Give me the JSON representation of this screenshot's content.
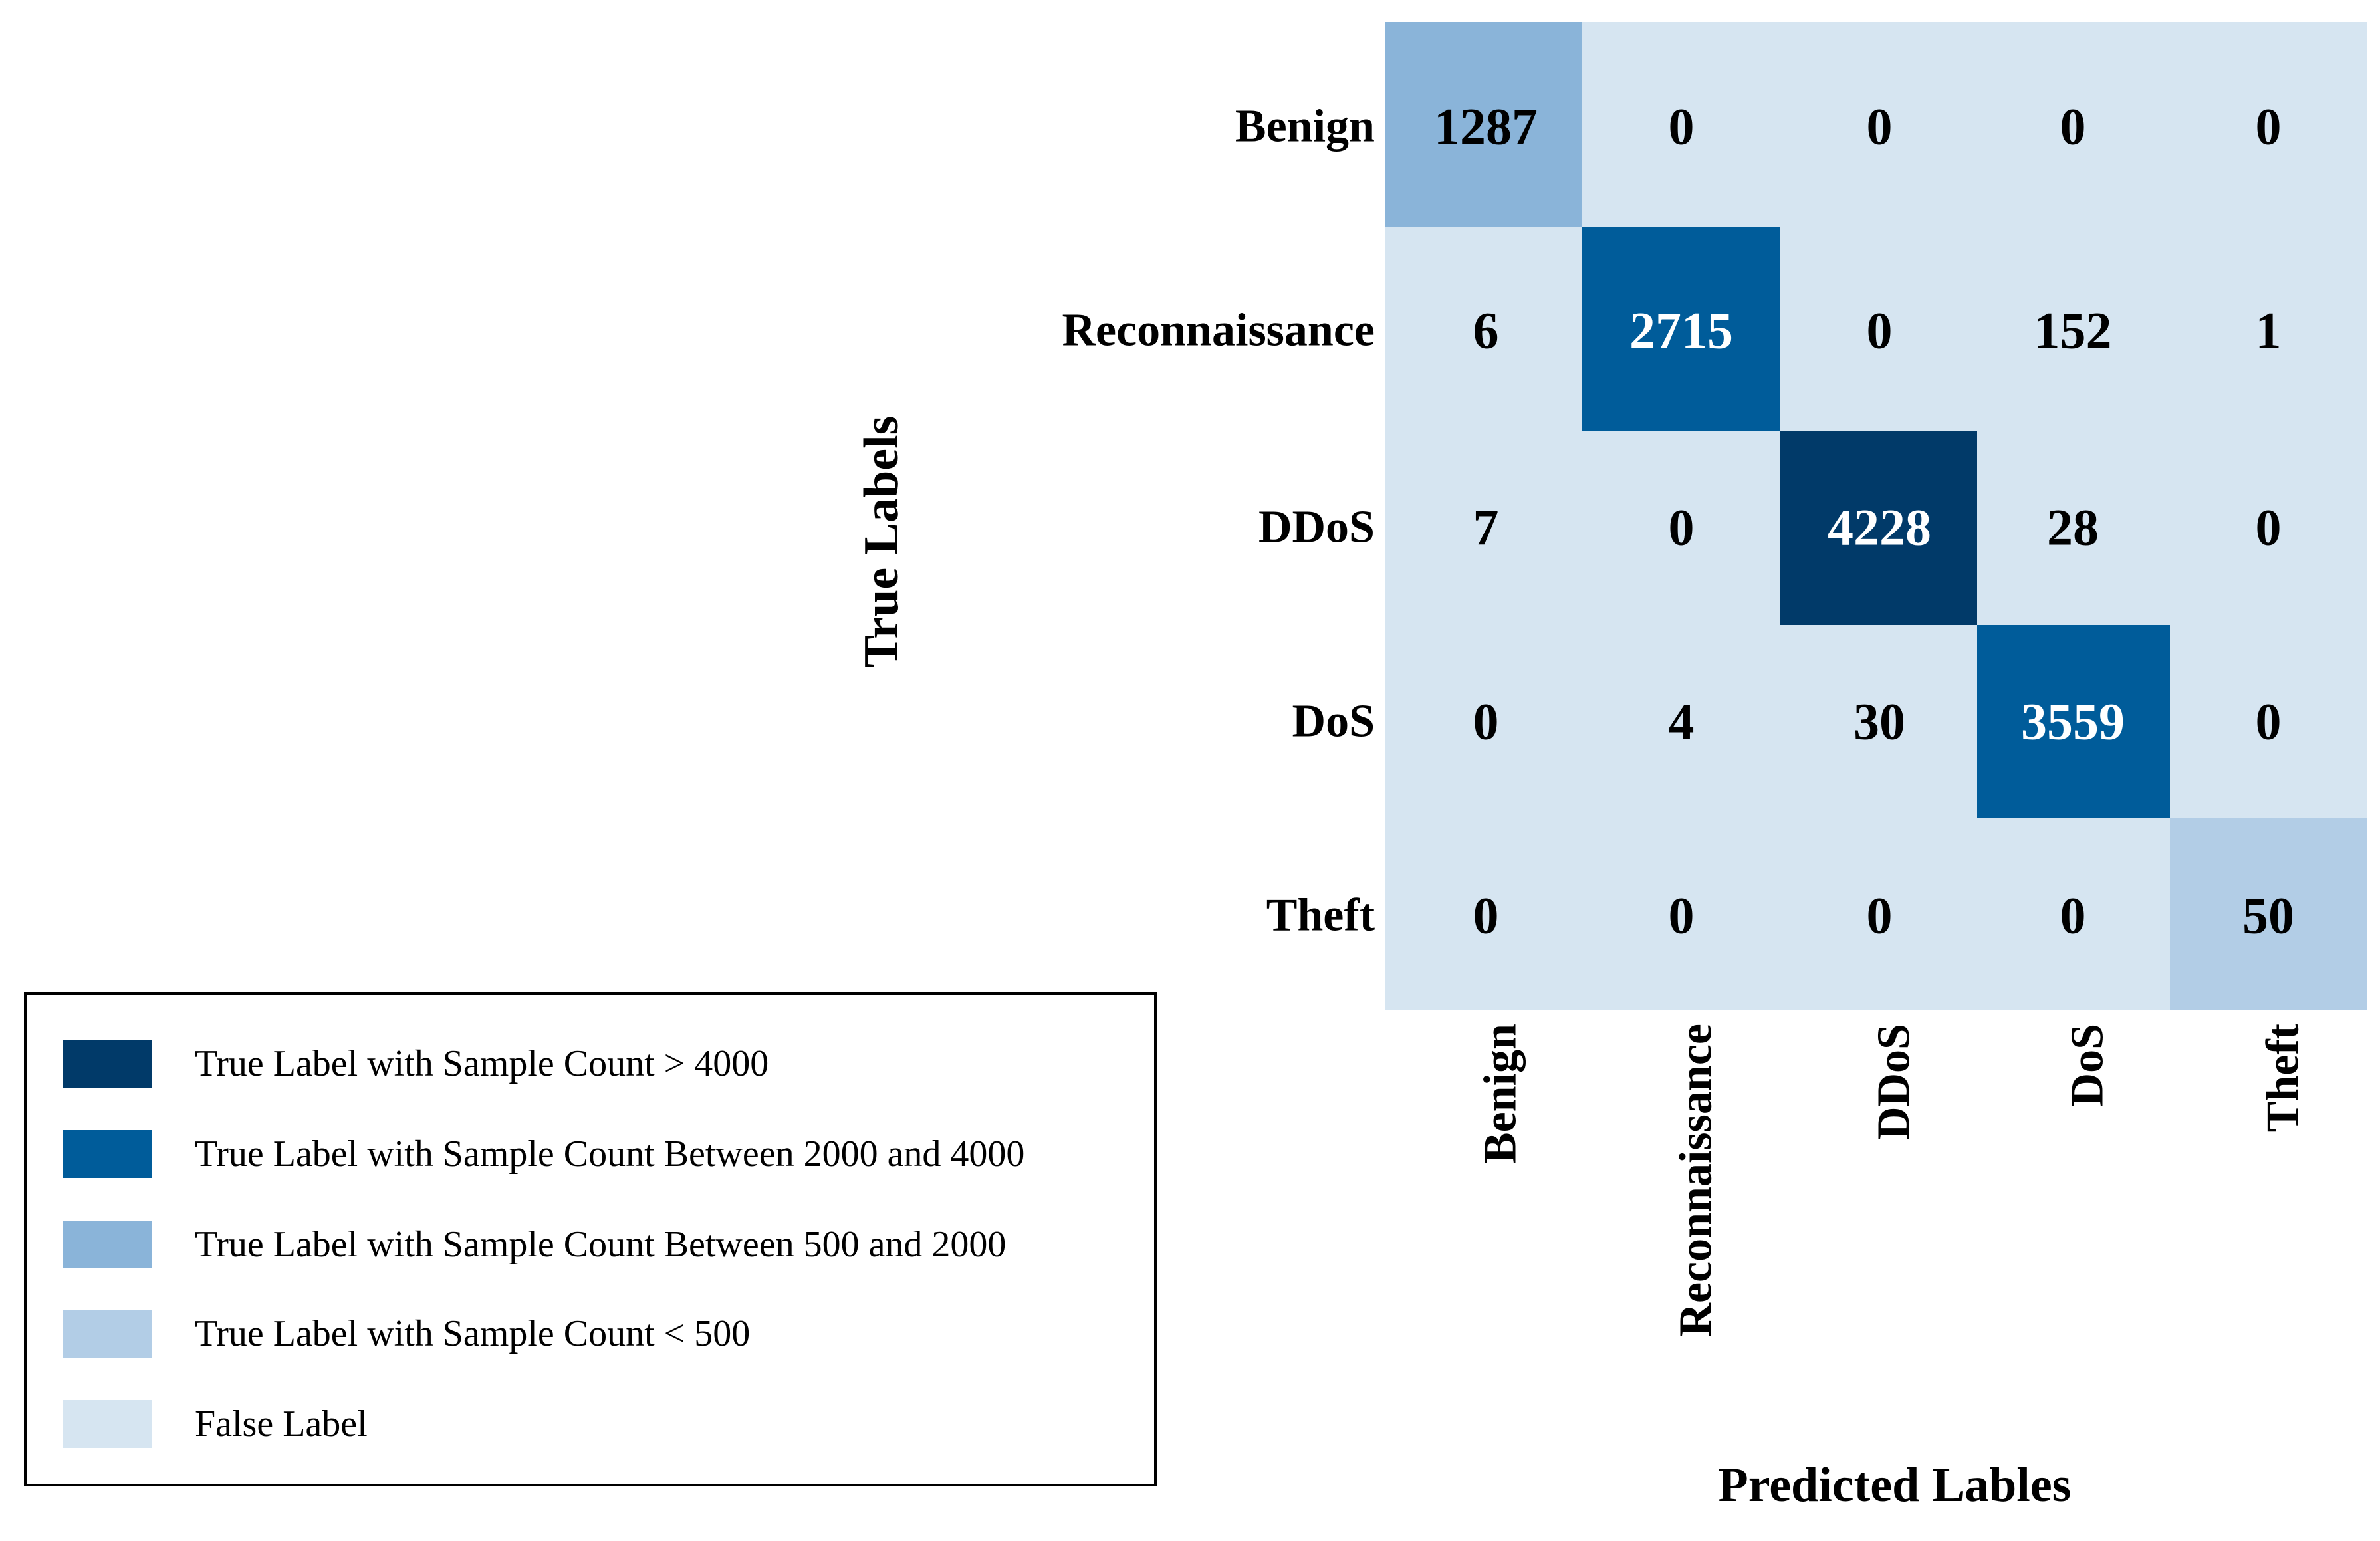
{
  "chart_data": {
    "type": "heatmap",
    "title": "",
    "xlabel": "Predicted Lables",
    "ylabel": "True Labels",
    "x_categories": [
      "Benign",
      "Reconnaissance",
      "DDoS",
      "DoS",
      "Theft"
    ],
    "y_categories": [
      "Benign",
      "Reconnaissance",
      "DDoS",
      "DoS",
      "Theft"
    ],
    "matrix": [
      [
        1287,
        0,
        0,
        0,
        0
      ],
      [
        6,
        2715,
        0,
        152,
        1
      ],
      [
        7,
        0,
        4228,
        28,
        0
      ],
      [
        0,
        4,
        30,
        3559,
        0
      ],
      [
        0,
        0,
        0,
        0,
        50
      ]
    ],
    "legend_position": "bottom-left",
    "legend": [
      {
        "label": "True Label with Sample Count > 4000",
        "color": "#013a69"
      },
      {
        "label": "True Label with Sample Count Between 2000 and 4000",
        "color": "#005c9a"
      },
      {
        "label": "True Label with Sample Count Between 500 and 2000",
        "color": "#8ab4d9"
      },
      {
        "label": "True Label with Sample Count < 500",
        "color": "#b2cde6"
      },
      {
        "label": "False Label",
        "color": "#d6e5f1"
      }
    ],
    "cell_colors": {
      "over_4000": "#013a69",
      "between_2000_4000": "#005c9a",
      "between_500_2000": "#8ab4d9",
      "under_500": "#b2cde6",
      "false_label": "#d6e5f1"
    }
  }
}
